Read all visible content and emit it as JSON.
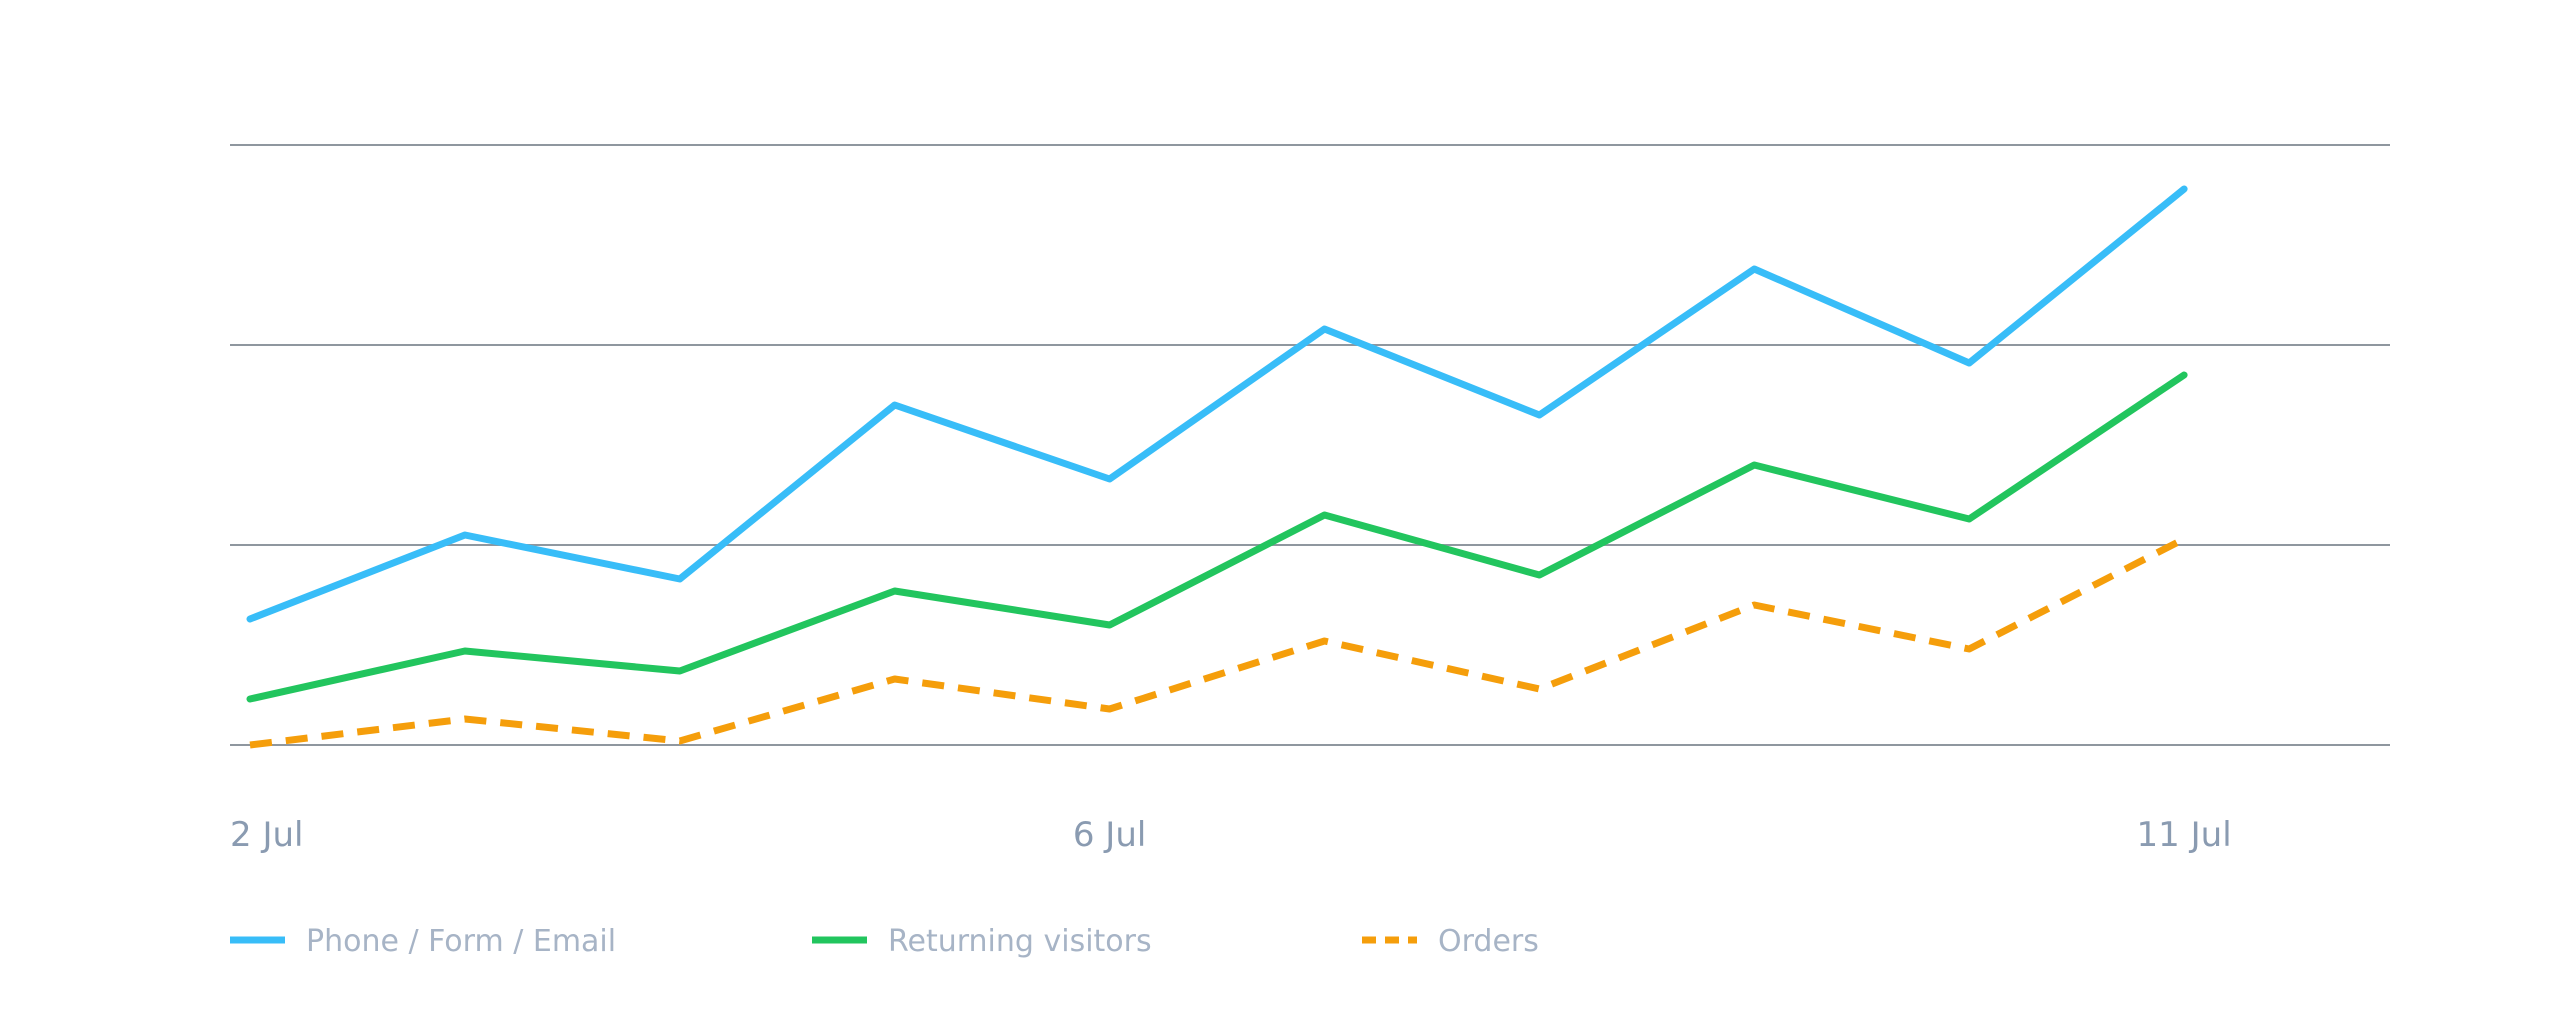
{
  "chart_data": {
    "type": "line",
    "x": [
      "2 Jul",
      "3 Jul",
      "4 Jul",
      "5 Jul",
      "6 Jul",
      "7 Jul",
      "8 Jul",
      "9 Jul",
      "10 Jul",
      "11 Jul"
    ],
    "x_ticks": [
      "2 Jul",
      "6 Jul",
      "11 Jul"
    ],
    "ylim": [
      0,
      300
    ],
    "grid": true,
    "y_tick_labels_shown": false,
    "legend_position": "bottom-left",
    "series": [
      {
        "name": "Phone / Form / Email",
        "color": "#38bdf8",
        "style": "solid",
        "values": [
          63,
          105,
          83,
          170,
          133,
          208,
          165,
          238,
          191,
          278
        ]
      },
      {
        "name": "Returning visitors",
        "color": "#22c55e",
        "style": "solid",
        "values": [
          23,
          47,
          37,
          77,
          60,
          115,
          85,
          140,
          113,
          185
        ]
      },
      {
        "name": "Orders",
        "color": "#f59e0b",
        "style": "dashed",
        "values": [
          0,
          13,
          2,
          33,
          18,
          52,
          28,
          70,
          48,
          103
        ]
      }
    ]
  }
}
